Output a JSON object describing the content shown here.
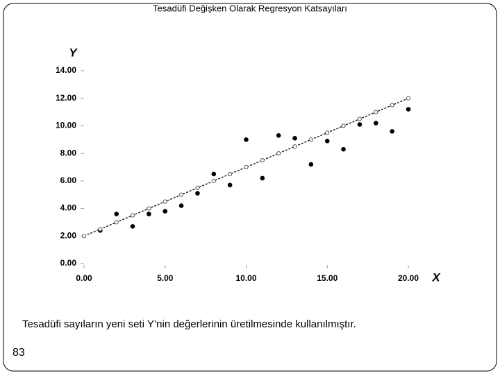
{
  "slide": {
    "title": "Tesadüfi Değişken Olarak Regresyon Katsayıları",
    "caption": "Tesadüfi sayıların yeni seti Y’nin değerlerinin üretilmesinde kullanılmıştır.",
    "page_number": "83"
  },
  "chart_data": {
    "type": "scatter",
    "x_label": "X",
    "y_label": "Y",
    "x": [
      0,
      1,
      2,
      3,
      4,
      5,
      6,
      7,
      8,
      9,
      10,
      11,
      12,
      13,
      14,
      15,
      16,
      17,
      18,
      19,
      20
    ],
    "series": [
      {
        "color": "#000000",
        "marker": "filled",
        "values": [
          null,
          2.4,
          3.6,
          2.7,
          3.6,
          3.8,
          4.2,
          5.1,
          6.5,
          5.7,
          9.0,
          6.2,
          9.3,
          9.1,
          7.2,
          8.9,
          8.3,
          10.1,
          10.2,
          9.6,
          11.2
        ]
      },
      {
        "color": "#555555",
        "marker": "open",
        "line": "dashed",
        "values": [
          2,
          2.5,
          3,
          3.5,
          4,
          4.5,
          5,
          5.5,
          6,
          6.5,
          7,
          7.5,
          8,
          8.5,
          9,
          9.5,
          10,
          10.5,
          11,
          11.5,
          12
        ]
      }
    ],
    "xlim": [
      0,
      20
    ],
    "xticks": [
      {
        "value": 0,
        "label": "0.00"
      },
      {
        "value": 5,
        "label": "5.00"
      },
      {
        "value": 10,
        "label": "10.00"
      },
      {
        "value": 15,
        "label": "15.00"
      },
      {
        "value": 20,
        "label": "20.00"
      }
    ],
    "ylim": [
      0,
      14
    ],
    "yticks": [
      {
        "value": 0,
        "label": "0.00"
      },
      {
        "value": 2,
        "label": "2.00"
      },
      {
        "value": 4,
        "label": "4.00"
      },
      {
        "value": 6,
        "label": "6.00"
      },
      {
        "value": 8,
        "label": "8.00"
      },
      {
        "value": 10,
        "label": "10.00"
      },
      {
        "value": 12,
        "label": "12.00"
      },
      {
        "value": 14,
        "label": "14.00"
      }
    ]
  }
}
